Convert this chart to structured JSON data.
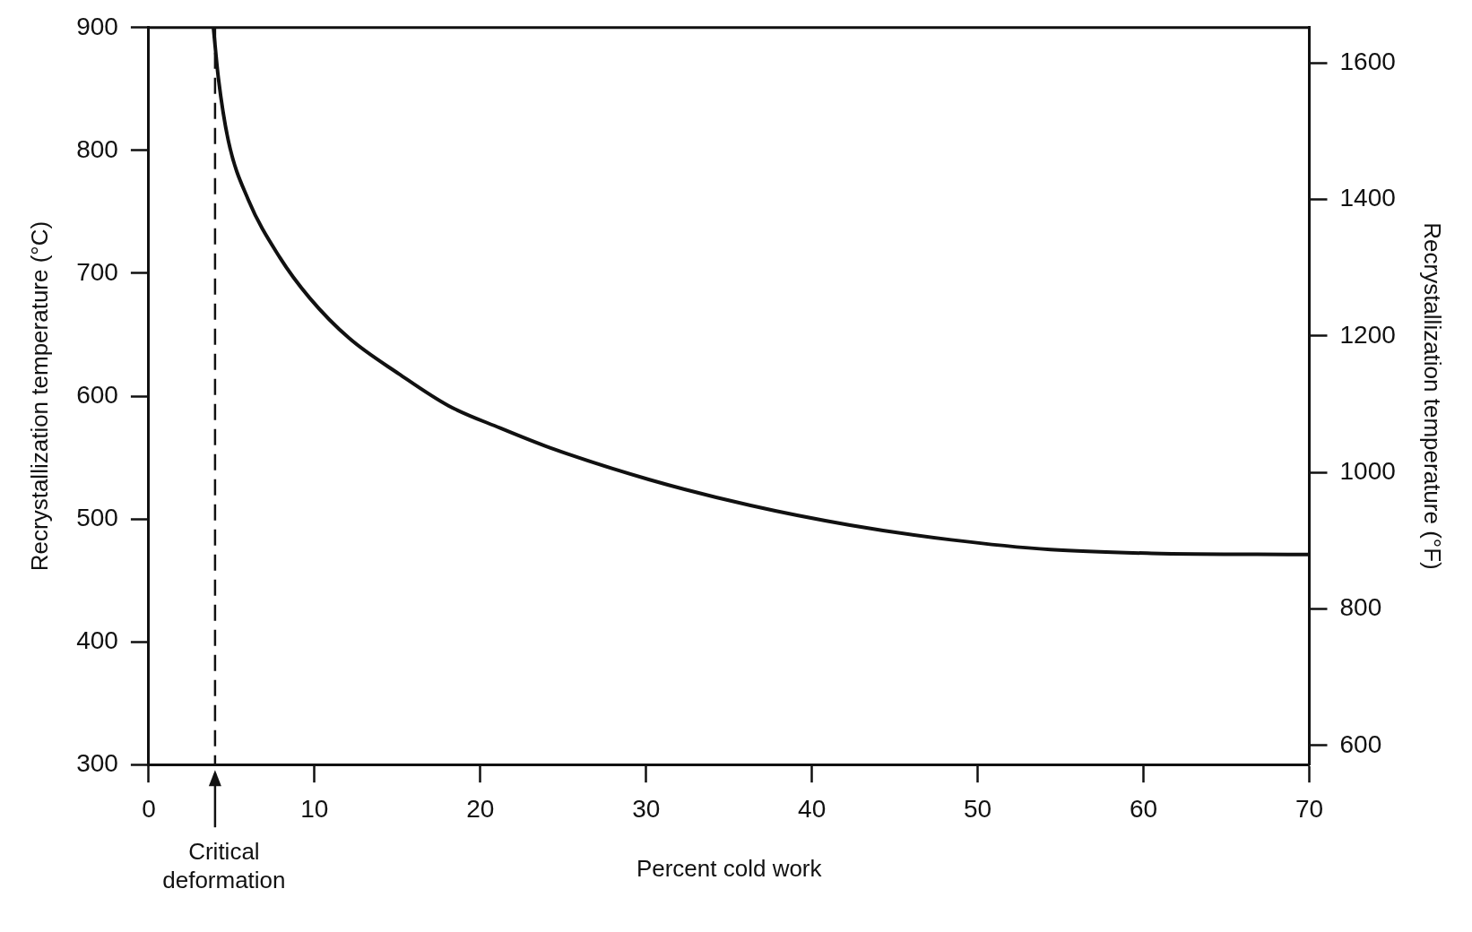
{
  "chart_data": {
    "type": "line",
    "xlabel": "Percent cold work",
    "ylabel": "Recrystallization temperature (°C)",
    "y2label": "Recrystallization temperature (°F)",
    "xlim": [
      0,
      70
    ],
    "xticks": [
      0,
      10,
      20,
      30,
      40,
      50,
      60,
      70
    ],
    "ylim": [
      300,
      900
    ],
    "yticks": [
      300,
      400,
      500,
      600,
      700,
      800,
      900
    ],
    "y2lim": [
      572,
      1652
    ],
    "y2ticks": [
      600,
      800,
      1000,
      1200,
      1400,
      1600
    ],
    "series": [
      {
        "color": "#111111",
        "x": [
          3.9,
          4.2,
          4.8,
          6.0,
          7.9,
          9.7,
          12.1,
          15.1,
          18.1,
          21.2,
          24.2,
          30.2,
          36.3,
          42.3,
          48.4,
          54.4,
          60.5,
          70
        ],
        "values": [
          900,
          859,
          808,
          760,
          713,
          680,
          647,
          618,
          592,
          574,
          558,
          532,
          511,
          495,
          483,
          475,
          472,
          471
        ]
      }
    ],
    "ref_lines": [
      {
        "axis": "x",
        "value": 4,
        "label": "Critical deformation",
        "line_style": "dashed",
        "color": "#111111"
      }
    ],
    "grid": false,
    "legend": false,
    "marker": "none",
    "line_style": "solid"
  }
}
